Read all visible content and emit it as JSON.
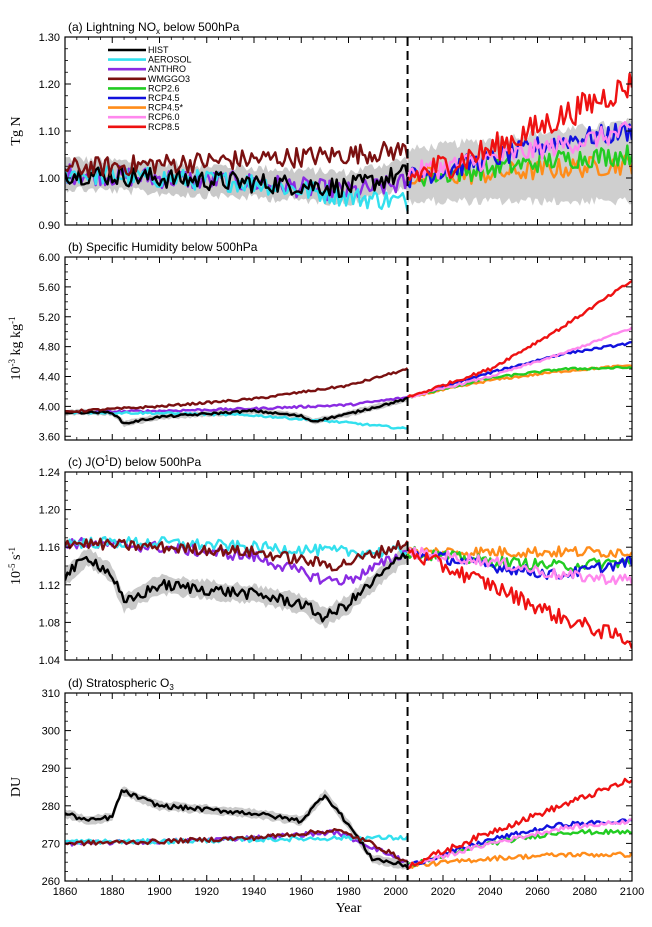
{
  "chart_data": [
    {
      "type": "line",
      "panel_id": "a",
      "title": "(a) Lightning NOx below 500hPa",
      "ylabel": "Tg N",
      "xlabel": "",
      "xlim": [
        1860,
        2100
      ],
      "ylim": [
        0.9,
        1.3
      ],
      "yticks": [
        0.9,
        1.0,
        1.1,
        1.2,
        1.3
      ],
      "ytick_labels": [
        "0.90",
        "1.00",
        "1.10",
        "1.20",
        "1.30"
      ],
      "legend_position": "top-left",
      "series": [
        {
          "name": "HIST",
          "color": "#000000",
          "x": [
            1860,
            1900,
            1940,
            1980,
            2005
          ],
          "y": [
            1.01,
            1.0,
            0.99,
            0.98,
            1.01
          ]
        },
        {
          "name": "AEROSOL",
          "color": "#33e0ee",
          "x": [
            1860,
            1900,
            1940,
            1980,
            2005
          ],
          "y": [
            1.01,
            1.0,
            0.99,
            0.96,
            0.95
          ]
        },
        {
          "name": "ANTHRO",
          "color": "#8a2be2",
          "x": [
            1860,
            1900,
            1940,
            1980,
            2005
          ],
          "y": [
            1.01,
            1.0,
            0.99,
            0.97,
            0.99
          ]
        },
        {
          "name": "WMGGO3",
          "color": "#7a1010",
          "x": [
            1860,
            1900,
            1940,
            1980,
            2005
          ],
          "y": [
            1.02,
            1.03,
            1.04,
            1.05,
            1.06
          ]
        },
        {
          "name": "RCP2.6",
          "color": "#22cc22",
          "x": [
            2005,
            2040,
            2070,
            2100
          ],
          "y": [
            1.0,
            1.02,
            1.04,
            1.05
          ]
        },
        {
          "name": "RCP4.5",
          "color": "#1111dd",
          "x": [
            2005,
            2040,
            2070,
            2100
          ],
          "y": [
            1.0,
            1.04,
            1.08,
            1.1
          ]
        },
        {
          "name": "RCP4.5*",
          "color": "#ff8c1a",
          "x": [
            2005,
            2040,
            2070,
            2100
          ],
          "y": [
            1.0,
            1.01,
            1.02,
            1.03
          ]
        },
        {
          "name": "RCP6.0",
          "color": "#ff88ee",
          "x": [
            2005,
            2040,
            2070,
            2100
          ],
          "y": [
            1.01,
            1.04,
            1.07,
            1.1
          ]
        },
        {
          "name": "RCP8.5",
          "color": "#ee1111",
          "x": [
            2005,
            2040,
            2070,
            2100
          ],
          "y": [
            1.0,
            1.06,
            1.13,
            1.2
          ]
        }
      ]
    },
    {
      "type": "line",
      "panel_id": "b",
      "title": "(b) Specific Humidity below 500hPa",
      "ylabel": "10-3 kg kg-1",
      "xlabel": "",
      "xlim": [
        1860,
        2100
      ],
      "ylim": [
        3.55,
        6.0
      ],
      "yticks": [
        3.6,
        4.0,
        4.4,
        4.8,
        5.2,
        5.6,
        6.0
      ],
      "ytick_labels": [
        "3.60",
        "4.00",
        "4.40",
        "4.80",
        "5.20",
        "5.60",
        "6.00"
      ],
      "series": [
        {
          "name": "HIST",
          "color": "#000000",
          "x": [
            1860,
            1880,
            1885,
            1900,
            1940,
            1960,
            1965,
            1980,
            2005
          ],
          "y": [
            3.92,
            3.92,
            3.77,
            3.86,
            3.94,
            3.87,
            3.8,
            3.9,
            4.1
          ]
        },
        {
          "name": "AEROSOL",
          "color": "#33e0ee",
          "x": [
            1860,
            1900,
            1940,
            1980,
            2005
          ],
          "y": [
            3.92,
            3.91,
            3.88,
            3.78,
            3.7
          ]
        },
        {
          "name": "ANTHRO",
          "color": "#8a2be2",
          "x": [
            1860,
            1900,
            1940,
            1980,
            2005
          ],
          "y": [
            3.92,
            3.94,
            3.97,
            4.02,
            4.12
          ]
        },
        {
          "name": "WMGGO3",
          "color": "#7a1010",
          "x": [
            1860,
            1900,
            1940,
            1980,
            2005
          ],
          "y": [
            3.93,
            4.0,
            4.1,
            4.28,
            4.5
          ]
        },
        {
          "name": "RCP2.6",
          "color": "#22cc22",
          "x": [
            2005,
            2040,
            2070,
            2100
          ],
          "y": [
            4.12,
            4.38,
            4.5,
            4.52
          ]
        },
        {
          "name": "RCP4.5",
          "color": "#1111dd",
          "x": [
            2005,
            2040,
            2070,
            2100
          ],
          "y": [
            4.12,
            4.45,
            4.7,
            4.85
          ]
        },
        {
          "name": "RCP4.5*",
          "color": "#ff8c1a",
          "x": [
            2005,
            2040,
            2070,
            2100
          ],
          "y": [
            4.12,
            4.35,
            4.47,
            4.55
          ]
        },
        {
          "name": "RCP6.0",
          "color": "#ff88ee",
          "x": [
            2005,
            2040,
            2070,
            2100
          ],
          "y": [
            4.12,
            4.4,
            4.7,
            5.05
          ]
        },
        {
          "name": "RCP8.5",
          "color": "#ee1111",
          "x": [
            2005,
            2040,
            2070,
            2100
          ],
          "y": [
            4.12,
            4.5,
            5.05,
            5.68
          ]
        }
      ]
    },
    {
      "type": "line",
      "panel_id": "c",
      "title": "(c) J(O1D) below 500hPa",
      "ylabel": "10-5 s-1",
      "xlabel": "",
      "xlim": [
        1860,
        2100
      ],
      "ylim": [
        1.04,
        1.24
      ],
      "yticks": [
        1.04,
        1.08,
        1.12,
        1.16,
        1.2,
        1.24
      ],
      "ytick_labels": [
        "1.04",
        "1.08",
        "1.12",
        "1.16",
        "1.20",
        "1.24"
      ],
      "series": [
        {
          "name": "HIST",
          "color": "#000000",
          "x": [
            1860,
            1870,
            1880,
            1885,
            1900,
            1940,
            1960,
            1970,
            1980,
            2005
          ],
          "y": [
            1.13,
            1.15,
            1.13,
            1.1,
            1.12,
            1.11,
            1.1,
            1.085,
            1.1,
            1.155
          ]
        },
        {
          "name": "AEROSOL",
          "color": "#33e0ee",
          "x": [
            1860,
            1900,
            1940,
            1980,
            2005
          ],
          "y": [
            1.165,
            1.165,
            1.16,
            1.155,
            1.155
          ]
        },
        {
          "name": "ANTHRO",
          "color": "#8a2be2",
          "x": [
            1860,
            1900,
            1940,
            1970,
            1980,
            2005
          ],
          "y": [
            1.165,
            1.16,
            1.15,
            1.125,
            1.125,
            1.155
          ]
        },
        {
          "name": "WMGGO3",
          "color": "#7a1010",
          "x": [
            1860,
            1900,
            1940,
            1975,
            2005
          ],
          "y": [
            1.165,
            1.16,
            1.155,
            1.14,
            1.165
          ]
        },
        {
          "name": "RCP2.6",
          "color": "#22cc22",
          "x": [
            2005,
            2040,
            2070,
            2100
          ],
          "y": [
            1.155,
            1.145,
            1.14,
            1.145
          ]
        },
        {
          "name": "RCP4.5",
          "color": "#1111dd",
          "x": [
            2005,
            2040,
            2070,
            2100
          ],
          "y": [
            1.155,
            1.14,
            1.13,
            1.145
          ]
        },
        {
          "name": "RCP4.5*",
          "color": "#ff8c1a",
          "x": [
            2005,
            2040,
            2070,
            2100
          ],
          "y": [
            1.155,
            1.155,
            1.155,
            1.155
          ]
        },
        {
          "name": "RCP6.0",
          "color": "#ff88ee",
          "x": [
            2005,
            2040,
            2070,
            2100
          ],
          "y": [
            1.155,
            1.145,
            1.13,
            1.125
          ]
        },
        {
          "name": "RCP8.5",
          "color": "#ee1111",
          "x": [
            2005,
            2040,
            2070,
            2100
          ],
          "y": [
            1.155,
            1.12,
            1.085,
            1.06
          ]
        }
      ]
    },
    {
      "type": "line",
      "panel_id": "d",
      "title": "(d) Stratospheric O3",
      "ylabel": "DU",
      "xlabel": "Year",
      "xlim": [
        1860,
        2100
      ],
      "ylim": [
        260,
        310
      ],
      "yticks": [
        260,
        270,
        280,
        290,
        300,
        310
      ],
      "ytick_labels": [
        "260",
        "270",
        "280",
        "290",
        "300",
        "310"
      ],
      "xticks": [
        1860,
        1880,
        1900,
        1920,
        1940,
        1960,
        1980,
        2000,
        2020,
        2040,
        2060,
        2080,
        2100
      ],
      "xtick_labels": [
        "1860",
        "1880",
        "1900",
        "1920",
        "1940",
        "1960",
        "1980",
        "2000",
        "2020",
        "2040",
        "2060",
        "2080",
        "2100"
      ],
      "series": [
        {
          "name": "HIST",
          "color": "#000000",
          "x": [
            1860,
            1870,
            1880,
            1884,
            1900,
            1940,
            1960,
            1970,
            1980,
            1990,
            2005
          ],
          "y": [
            278,
            276,
            277,
            284,
            280,
            278,
            276,
            283,
            275,
            266,
            264
          ]
        },
        {
          "name": "AEROSOL",
          "color": "#33e0ee",
          "x": [
            1860,
            1900,
            1940,
            1980,
            2005
          ],
          "y": [
            270.5,
            270.5,
            271,
            271.5,
            271.5
          ]
        },
        {
          "name": "ANTHRO",
          "color": "#8a2be2",
          "x": [
            1860,
            1900,
            1940,
            1975,
            1990,
            2005
          ],
          "y": [
            270,
            270.5,
            271.5,
            273,
            269,
            265
          ]
        },
        {
          "name": "WMGGO3",
          "color": "#7a1010",
          "x": [
            1860,
            1900,
            1940,
            1975,
            1990,
            2005
          ],
          "y": [
            270,
            270.5,
            271.5,
            273.5,
            270,
            265
          ]
        },
        {
          "name": "RCP2.6",
          "color": "#22cc22",
          "x": [
            2005,
            2040,
            2070,
            2100
          ],
          "y": [
            264,
            270,
            273,
            273
          ]
        },
        {
          "name": "RCP4.5",
          "color": "#1111dd",
          "x": [
            2005,
            2040,
            2070,
            2100
          ],
          "y": [
            264,
            271,
            275,
            276
          ]
        },
        {
          "name": "RCP4.5*",
          "color": "#ff8c1a",
          "x": [
            2005,
            2040,
            2070,
            2100
          ],
          "y": [
            264,
            266,
            267,
            267
          ]
        },
        {
          "name": "RCP6.0",
          "color": "#ff88ee",
          "x": [
            2005,
            2040,
            2070,
            2100
          ],
          "y": [
            264,
            270,
            274,
            276
          ]
        },
        {
          "name": "RCP8.5",
          "color": "#ee1111",
          "x": [
            2005,
            2040,
            2070,
            2100
          ],
          "y": [
            264,
            273,
            280,
            287
          ]
        }
      ]
    }
  ],
  "shared": {
    "divider_year": 2005,
    "uncertainty_band_color": "#bbbbbb"
  }
}
